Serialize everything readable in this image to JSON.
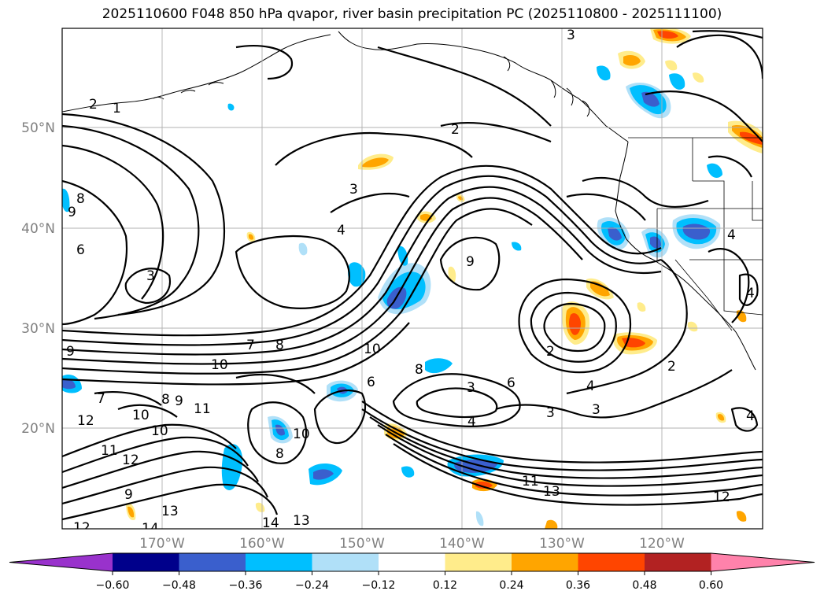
{
  "title": "2025110600 F048 850 hPa qvapor, river basin precipitation PC (2025110800 - 2025111100)",
  "map": {
    "lat_labels": [
      "50°N",
      "40°N",
      "30°N",
      "20°N"
    ],
    "lon_labels": [
      "170°W",
      "160°W",
      "150°W",
      "140°W",
      "130°W",
      "120°W"
    ],
    "contour_labels": [
      "2",
      "1",
      "3",
      "4",
      "6",
      "3",
      "8",
      "9",
      "7",
      "8",
      "10",
      "10",
      "10",
      "7",
      "8",
      "9",
      "9",
      "11",
      "12",
      "10",
      "11",
      "12",
      "9",
      "13",
      "14",
      "12",
      "13",
      "14",
      "8",
      "6",
      "10",
      "8",
      "3",
      "6",
      "4",
      "3",
      "3",
      "2",
      "2",
      "4",
      "9",
      "11",
      "13",
      "12",
      "4",
      "4",
      "3",
      "2",
      "4"
    ]
  },
  "colorbar": {
    "ticks": [
      "−0.60",
      "−0.48",
      "−0.36",
      "−0.24",
      "−0.12",
      "0.12",
      "0.24",
      "0.36",
      "0.48",
      "0.60"
    ],
    "colors": [
      "#9932cc",
      "#00008b",
      "#3a5fcd",
      "#00bfff",
      "#b0e0f8",
      "#ffffff",
      "#ffec8b",
      "#ffa500",
      "#ff4500",
      "#b22222",
      "#ff82ab"
    ]
  }
}
